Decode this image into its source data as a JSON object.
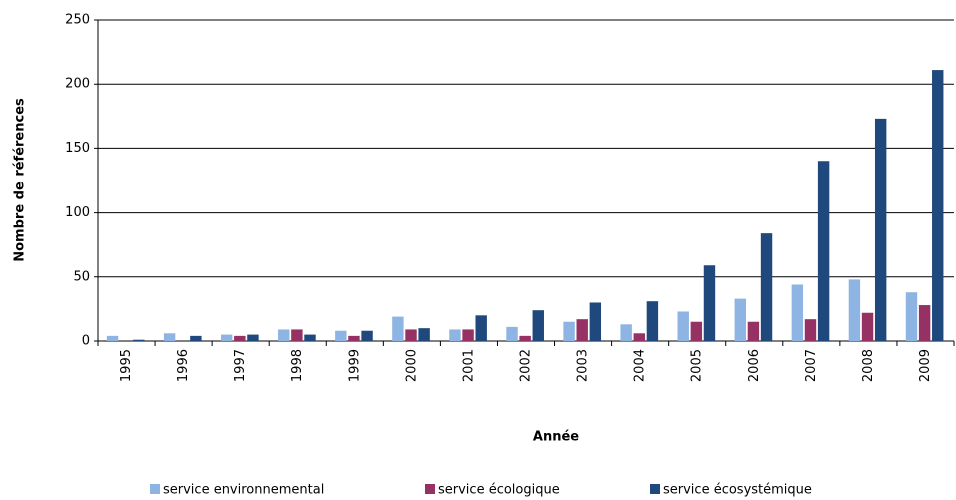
{
  "chart_data": {
    "type": "bar",
    "x_label": "Année",
    "y_label": "Nombre de références",
    "categories": [
      "1995",
      "1996",
      "1997",
      "1998",
      "1999",
      "2000",
      "2001",
      "2002",
      "2003",
      "2004",
      "2005",
      "2006",
      "2007",
      "2008",
      "2009"
    ],
    "series": [
      {
        "name": "service environnemental",
        "color": "#8db4e2",
        "values": [
          4,
          6,
          5,
          9,
          8,
          19,
          9,
          11,
          15,
          13,
          23,
          33,
          44,
          48,
          38
        ]
      },
      {
        "name": "service écologique",
        "color": "#953163",
        "values": [
          0,
          0,
          4,
          9,
          4,
          9,
          9,
          4,
          17,
          6,
          15,
          15,
          17,
          22,
          28
        ]
      },
      {
        "name": "service écosystémique",
        "color": "#1f497d",
        "values": [
          1,
          4,
          5,
          5,
          8,
          10,
          20,
          24,
          30,
          31,
          59,
          84,
          140,
          173,
          211
        ]
      }
    ],
    "ylim": [
      0,
      250
    ],
    "yticks": [
      0,
      50,
      100,
      150,
      200,
      250
    ],
    "grid": true,
    "legend": "bottom"
  }
}
